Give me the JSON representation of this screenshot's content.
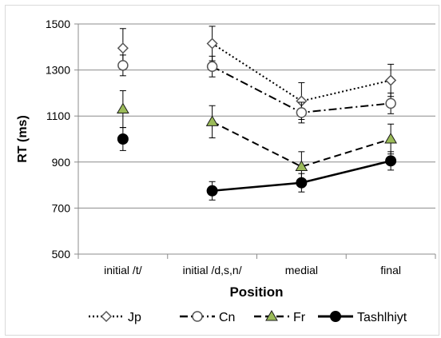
{
  "chart_data": {
    "type": "line",
    "title": "",
    "xlabel": "Position",
    "ylabel": "RT (ms)",
    "categories": [
      "initial /t/",
      "initial /d,s,n/",
      "medial",
      "final"
    ],
    "ylim": [
      500,
      1500
    ],
    "yticks": [
      "500",
      "700",
      "900",
      "1100",
      "1300",
      "1500"
    ],
    "grid": true,
    "legend_position": "bottom",
    "series": [
      {
        "name": "Jp",
        "values": [
          1395,
          1415,
          1165,
          1255
        ],
        "errors": [
          85,
          75,
          80,
          70
        ],
        "style": "dotted",
        "marker": "diamond-open",
        "color": "#000000"
      },
      {
        "name": "Cn",
        "values": [
          1320,
          1315,
          1115,
          1155
        ],
        "errors": [
          45,
          45,
          45,
          45
        ],
        "style": "dashdot",
        "marker": "circle-open",
        "color": "#000000"
      },
      {
        "name": "Fr",
        "values": [
          1130,
          1075,
          880,
          1000
        ],
        "errors": [
          80,
          70,
          65,
          65
        ],
        "style": "dashed",
        "marker": "triangle",
        "marker_fill": "#9bbb59",
        "color": "#000000"
      },
      {
        "name": "Tashlhiyt",
        "values": [
          1000,
          775,
          810,
          905
        ],
        "errors": [
          50,
          40,
          40,
          40
        ],
        "style": "solid",
        "marker": "circle-filled",
        "color": "#000000"
      }
    ]
  }
}
